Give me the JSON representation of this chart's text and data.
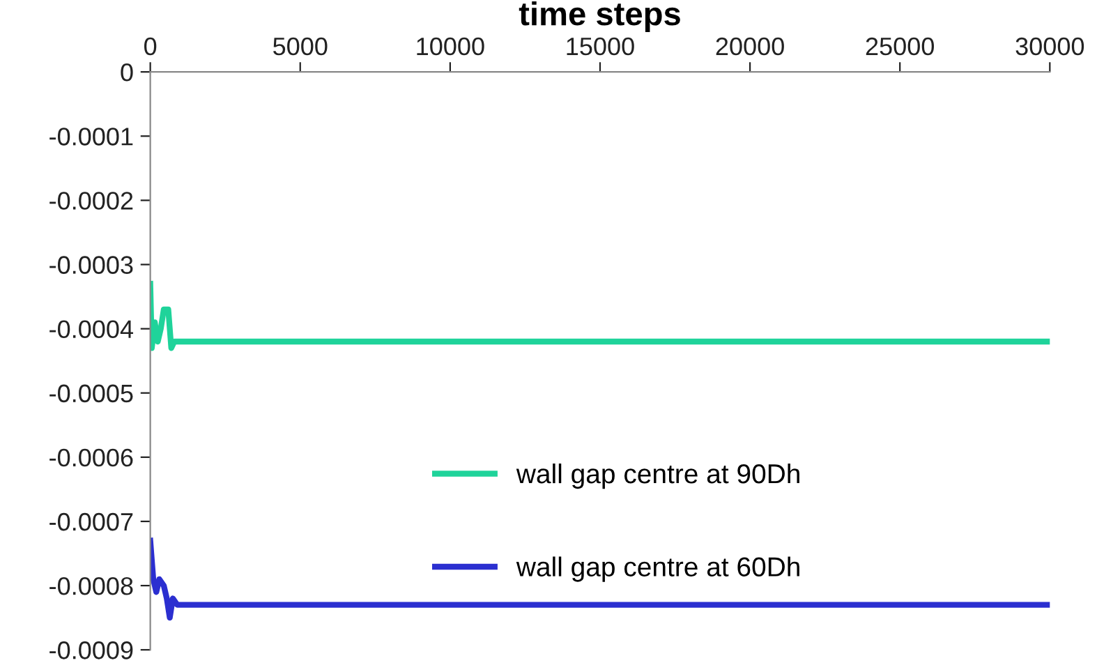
{
  "chart_data": {
    "type": "line",
    "xlabel": "time steps",
    "xlim": [
      0,
      30000
    ],
    "xticks": [
      0,
      5000,
      10000,
      15000,
      20000,
      25000,
      30000
    ],
    "ylim": [
      -0.0009,
      0
    ],
    "yticks": [
      0,
      -0.0001,
      -0.0002,
      -0.0003,
      -0.0004,
      -0.0005,
      -0.0006,
      -0.0007,
      -0.0008,
      -0.0009
    ],
    "grid": false,
    "legend": "center",
    "marker": "none",
    "line_style": "solid",
    "series": [
      {
        "name": "wall gap centre at 90Dh",
        "color": "#1fd39a",
        "x": [
          0,
          50,
          150,
          250,
          350,
          450,
          600,
          700,
          800,
          1000,
          5000,
          10000,
          15000,
          20000,
          25000,
          30000
        ],
        "values": [
          -0.00033,
          -0.00043,
          -0.00039,
          -0.00042,
          -0.0004,
          -0.00037,
          -0.00037,
          -0.00043,
          -0.00042,
          -0.00042,
          -0.00042,
          -0.00042,
          -0.00042,
          -0.00042,
          -0.00042,
          -0.00042
        ]
      },
      {
        "name": "wall gap centre at 60Dh",
        "color": "#2b2fd0",
        "x": [
          0,
          100,
          200,
          300,
          450,
          550,
          650,
          750,
          900,
          5000,
          10000,
          15000,
          20000,
          25000,
          30000
        ],
        "values": [
          -0.00073,
          -0.00079,
          -0.00081,
          -0.00079,
          -0.0008,
          -0.00082,
          -0.00085,
          -0.00082,
          -0.00083,
          -0.00083,
          -0.00083,
          -0.00083,
          -0.00083,
          -0.00083,
          -0.00083
        ]
      }
    ]
  }
}
